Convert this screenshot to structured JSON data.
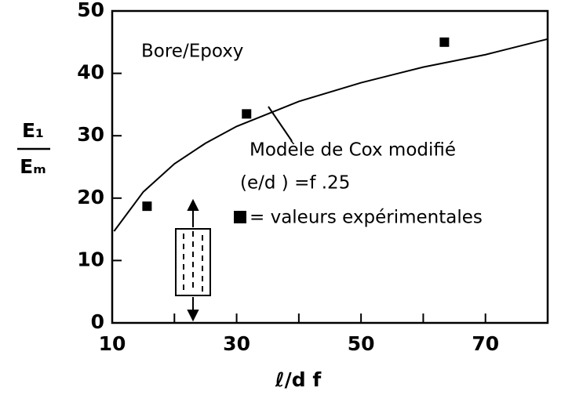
{
  "chart_data": {
    "type": "scatter",
    "y_label_numerator": "E₁",
    "y_label_denominator": "Eₘ",
    "x_label": "ℓ/d f",
    "annotations": [
      "Bore/Epoxy",
      "(e/d ) =f .25"
    ],
    "xlim": [
      10,
      80
    ],
    "xticks": [
      10,
      30,
      50,
      70
    ],
    "xminor": [
      20,
      40,
      60
    ],
    "ylim": [
      0,
      50
    ],
    "yticks": [
      0,
      10,
      20,
      30,
      40,
      50
    ],
    "series": [
      {
        "name": "Modèle de Cox modifié",
        "mode": "line",
        "color": "#000000",
        "x": [
          10.3,
          15,
          20,
          25,
          30,
          40,
          50,
          60,
          70,
          80
        ],
        "values": [
          14.7,
          21,
          25.5,
          28.8,
          31.5,
          35.5,
          38.5,
          41,
          43,
          45.5
        ]
      },
      {
        "name": "= valeurs expérimentales",
        "mode": "marker",
        "color": "#000000",
        "x": [
          15.6,
          31.6,
          63.4
        ],
        "values": [
          18.7,
          33.5,
          45
        ]
      }
    ]
  }
}
